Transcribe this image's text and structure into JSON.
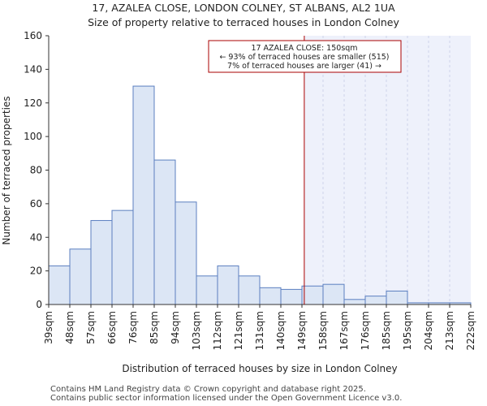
{
  "title_line1": "17, AZALEA CLOSE, LONDON COLNEY, ST ALBANS, AL2 1UA",
  "title_line2": "Size of property relative to terraced houses in London Colney",
  "footer_line1": "Contains HM Land Registry data © Crown copyright and database right 2025.",
  "footer_line2": "Contains public sector information licensed under the Open Government Licence v3.0.",
  "chart_data": {
    "type": "bar",
    "xlabel": "Distribution of terraced houses by size in London Colney",
    "ylabel": "Number of terraced properties",
    "ylim": [
      0,
      160
    ],
    "yticks": [
      0,
      20,
      40,
      60,
      80,
      100,
      120,
      140,
      160
    ],
    "bin_edges": [
      39,
      48,
      57,
      66,
      76,
      85,
      94,
      103,
      112,
      121,
      131,
      140,
      149,
      158,
      167,
      176,
      185,
      195,
      204,
      213,
      222
    ],
    "tick_labels": [
      "39sqm",
      "48sqm",
      "57sqm",
      "66sqm",
      "76sqm",
      "85sqm",
      "94sqm",
      "103sqm",
      "112sqm",
      "121sqm",
      "131sqm",
      "140sqm",
      "149sqm",
      "158sqm",
      "167sqm",
      "176sqm",
      "185sqm",
      "195sqm",
      "204sqm",
      "213sqm",
      "222sqm"
    ],
    "values": [
      23,
      33,
      50,
      56,
      130,
      86,
      61,
      17,
      23,
      17,
      10,
      9,
      11,
      12,
      3,
      5,
      8,
      1,
      1,
      1
    ],
    "marker_value": 150,
    "bar_color": "#dce6f5",
    "bar_edge_color": "#5b7fc0",
    "marker_color": "#aa0000",
    "shade_color": "#eef1fb",
    "annotation": {
      "line1": "17 AZALEA CLOSE: 150sqm",
      "line2": "← 93% of terraced houses are smaller (515)",
      "line3": "7% of terraced houses are larger (41) →"
    }
  }
}
